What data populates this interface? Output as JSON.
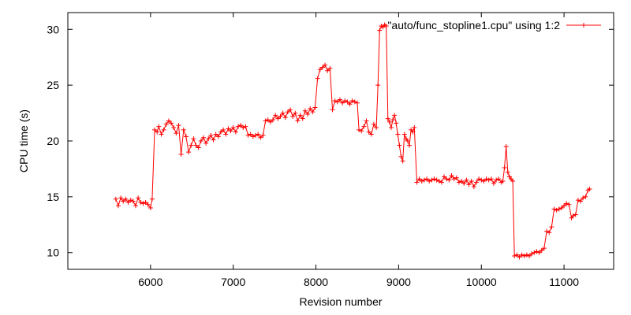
{
  "chart_data": {
    "type": "line",
    "title": "",
    "xlabel": "Revision number",
    "ylabel": "CPU time (s)",
    "xlim": [
      5000,
      11600
    ],
    "ylim": [
      8.5,
      31.5
    ],
    "xticks": [
      6000,
      7000,
      8000,
      9000,
      10000,
      11000
    ],
    "yticks": [
      10,
      15,
      20,
      25,
      30
    ],
    "grid": false,
    "legend_position": "top-right",
    "series": [
      {
        "name": "\"auto/func_stopline1.cpu\" using 1:2",
        "color": "#ff0000",
        "marker": "plus",
        "points": [
          [
            5580,
            14.8
          ],
          [
            5610,
            14.2
          ],
          [
            5640,
            14.9
          ],
          [
            5670,
            14.6
          ],
          [
            5700,
            14.8
          ],
          [
            5730,
            14.5
          ],
          [
            5760,
            14.7
          ],
          [
            5790,
            14.6
          ],
          [
            5820,
            14.2
          ],
          [
            5850,
            14.9
          ],
          [
            5880,
            14.5
          ],
          [
            5910,
            14.4
          ],
          [
            5940,
            14.5
          ],
          [
            5970,
            14.3
          ],
          [
            6000,
            14.0
          ],
          [
            6020,
            14.8
          ],
          [
            6050,
            21.0
          ],
          [
            6080,
            20.8
          ],
          [
            6100,
            21.3
          ],
          [
            6130,
            20.6
          ],
          [
            6160,
            21.0
          ],
          [
            6190,
            21.5
          ],
          [
            6220,
            21.8
          ],
          [
            6250,
            21.6
          ],
          [
            6280,
            21.2
          ],
          [
            6310,
            20.7
          ],
          [
            6340,
            21.4
          ],
          [
            6370,
            18.8
          ],
          [
            6400,
            21.0
          ],
          [
            6430,
            20.4
          ],
          [
            6460,
            19.0
          ],
          [
            6490,
            19.6
          ],
          [
            6520,
            20.2
          ],
          [
            6550,
            19.6
          ],
          [
            6580,
            19.4
          ],
          [
            6610,
            20.0
          ],
          [
            6640,
            20.3
          ],
          [
            6670,
            19.8
          ],
          [
            6700,
            20.2
          ],
          [
            6730,
            20.5
          ],
          [
            6760,
            20.1
          ],
          [
            6790,
            20.6
          ],
          [
            6820,
            20.4
          ],
          [
            6850,
            20.8
          ],
          [
            6880,
            21.0
          ],
          [
            6910,
            20.6
          ],
          [
            6940,
            21.1
          ],
          [
            6970,
            20.9
          ],
          [
            7000,
            21.2
          ],
          [
            7030,
            20.8
          ],
          [
            7060,
            21.3
          ],
          [
            7090,
            21.4
          ],
          [
            7120,
            21.2
          ],
          [
            7150,
            21.3
          ],
          [
            7180,
            20.5
          ],
          [
            7210,
            20.6
          ],
          [
            7240,
            20.4
          ],
          [
            7270,
            20.5
          ],
          [
            7300,
            20.6
          ],
          [
            7330,
            20.3
          ],
          [
            7360,
            20.5
          ],
          [
            7390,
            21.8
          ],
          [
            7420,
            21.9
          ],
          [
            7450,
            21.7
          ],
          [
            7480,
            21.9
          ],
          [
            7510,
            22.3
          ],
          [
            7540,
            22.0
          ],
          [
            7570,
            22.2
          ],
          [
            7600,
            22.5
          ],
          [
            7630,
            22.1
          ],
          [
            7660,
            22.6
          ],
          [
            7690,
            22.8
          ],
          [
            7720,
            22.2
          ],
          [
            7750,
            22.5
          ],
          [
            7780,
            21.8
          ],
          [
            7810,
            22.3
          ],
          [
            7840,
            22.0
          ],
          [
            7870,
            22.7
          ],
          [
            7900,
            22.4
          ],
          [
            7930,
            22.9
          ],
          [
            7960,
            22.6
          ],
          [
            7990,
            23.0
          ],
          [
            8020,
            25.6
          ],
          [
            8050,
            26.4
          ],
          [
            8080,
            26.6
          ],
          [
            8110,
            26.8
          ],
          [
            8140,
            26.3
          ],
          [
            8170,
            26.5
          ],
          [
            8200,
            22.8
          ],
          [
            8230,
            23.6
          ],
          [
            8260,
            23.5
          ],
          [
            8290,
            23.7
          ],
          [
            8320,
            23.4
          ],
          [
            8350,
            23.6
          ],
          [
            8380,
            23.5
          ],
          [
            8410,
            23.3
          ],
          [
            8440,
            23.6
          ],
          [
            8470,
            23.5
          ],
          [
            8500,
            23.4
          ],
          [
            8520,
            21.0
          ],
          [
            8550,
            20.9
          ],
          [
            8580,
            21.3
          ],
          [
            8610,
            21.8
          ],
          [
            8640,
            20.8
          ],
          [
            8670,
            20.6
          ],
          [
            8700,
            21.5
          ],
          [
            8730,
            21.2
          ],
          [
            8750,
            25.0
          ],
          [
            8770,
            29.9
          ],
          [
            8790,
            30.3
          ],
          [
            8810,
            30.2
          ],
          [
            8830,
            30.4
          ],
          [
            8850,
            30.3
          ],
          [
            8870,
            22.0
          ],
          [
            8890,
            21.7
          ],
          [
            8910,
            21.2
          ],
          [
            8930,
            21.9
          ],
          [
            8950,
            22.3
          ],
          [
            8970,
            21.6
          ],
          [
            8990,
            20.6
          ],
          [
            9010,
            19.6
          ],
          [
            9030,
            18.6
          ],
          [
            9050,
            18.2
          ],
          [
            9070,
            20.6
          ],
          [
            9090,
            20.2
          ],
          [
            9110,
            20.0
          ],
          [
            9130,
            19.6
          ],
          [
            9150,
            21.0
          ],
          [
            9170,
            20.8
          ],
          [
            9190,
            21.2
          ],
          [
            9220,
            16.3
          ],
          [
            9250,
            16.6
          ],
          [
            9280,
            16.4
          ],
          [
            9310,
            16.5
          ],
          [
            9340,
            16.6
          ],
          [
            9370,
            16.4
          ],
          [
            9400,
            16.5
          ],
          [
            9430,
            16.6
          ],
          [
            9460,
            16.5
          ],
          [
            9490,
            16.4
          ],
          [
            9520,
            16.3
          ],
          [
            9550,
            16.8
          ],
          [
            9580,
            16.6
          ],
          [
            9610,
            16.5
          ],
          [
            9640,
            16.9
          ],
          [
            9670,
            16.6
          ],
          [
            9700,
            16.7
          ],
          [
            9730,
            16.3
          ],
          [
            9760,
            16.4
          ],
          [
            9790,
            16.2
          ],
          [
            9820,
            16.5
          ],
          [
            9850,
            16.1
          ],
          [
            9880,
            16.4
          ],
          [
            9910,
            15.9
          ],
          [
            9940,
            16.3
          ],
          [
            9970,
            16.6
          ],
          [
            10000,
            16.5
          ],
          [
            10030,
            16.4
          ],
          [
            10060,
            16.6
          ],
          [
            10090,
            16.5
          ],
          [
            10120,
            16.6
          ],
          [
            10150,
            16.2
          ],
          [
            10180,
            16.5
          ],
          [
            10210,
            16.6
          ],
          [
            10240,
            16.3
          ],
          [
            10260,
            16.4
          ],
          [
            10280,
            17.6
          ],
          [
            10300,
            19.5
          ],
          [
            10320,
            17.2
          ],
          [
            10340,
            16.8
          ],
          [
            10360,
            16.6
          ],
          [
            10380,
            16.4
          ],
          [
            10400,
            9.7
          ],
          [
            10430,
            9.8
          ],
          [
            10460,
            9.6
          ],
          [
            10490,
            9.8
          ],
          [
            10520,
            9.7
          ],
          [
            10550,
            9.8
          ],
          [
            10580,
            9.7
          ],
          [
            10610,
            9.9
          ],
          [
            10640,
            10.0
          ],
          [
            10670,
            10.1
          ],
          [
            10700,
            10.0
          ],
          [
            10730,
            10.2
          ],
          [
            10760,
            10.4
          ],
          [
            10790,
            11.9
          ],
          [
            10820,
            11.8
          ],
          [
            10850,
            12.3
          ],
          [
            10880,
            13.9
          ],
          [
            10910,
            13.8
          ],
          [
            10940,
            13.9
          ],
          [
            10970,
            14.0
          ],
          [
            11000,
            14.2
          ],
          [
            11030,
            14.4
          ],
          [
            11060,
            14.3
          ],
          [
            11090,
            13.1
          ],
          [
            11110,
            13.3
          ],
          [
            11140,
            13.4
          ],
          [
            11170,
            14.7
          ],
          [
            11200,
            14.6
          ],
          [
            11230,
            14.9
          ],
          [
            11260,
            15.0
          ],
          [
            11290,
            15.6
          ],
          [
            11310,
            15.7
          ]
        ]
      }
    ]
  }
}
